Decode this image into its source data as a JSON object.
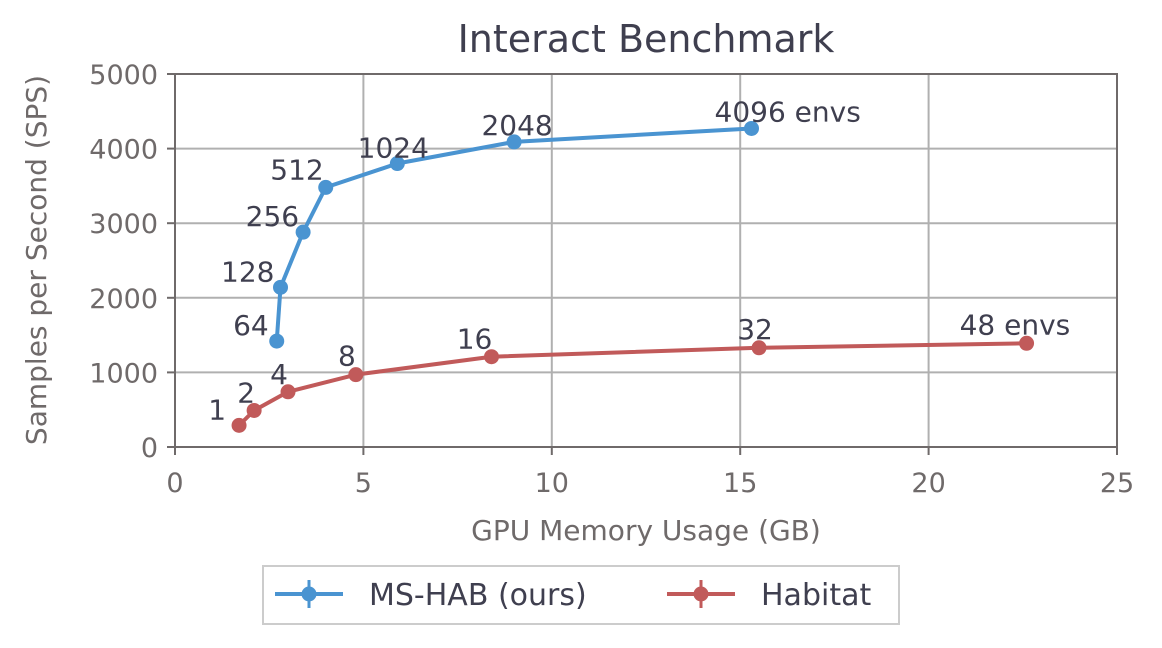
{
  "chart_data": {
    "type": "line",
    "title": "Interact Benchmark",
    "xlabel": "GPU Memory Usage (GB)",
    "ylabel": "Samples per Second (SPS)",
    "xlim": [
      0,
      25
    ],
    "ylim": [
      0,
      5000
    ],
    "xticks": [
      0,
      5,
      10,
      15,
      20,
      25
    ],
    "yticks": [
      0,
      1000,
      2000,
      3000,
      4000,
      5000
    ],
    "grid": true,
    "legend_position": "bottom-center",
    "series": [
      {
        "name": "MS-HAB (ours)",
        "color": "#4a94d1",
        "x": [
          2.7,
          2.8,
          3.4,
          4.0,
          5.9,
          9.0,
          15.3
        ],
        "y": [
          1420,
          2140,
          2880,
          3480,
          3800,
          4090,
          4270
        ],
        "labels": [
          "64",
          "128",
          "256",
          "512",
          "1024",
          "2048",
          "4096 envs"
        ]
      },
      {
        "name": "Habitat",
        "color": "#c15a5a",
        "x": [
          1.7,
          2.1,
          3.0,
          4.8,
          8.4,
          15.5,
          22.6
        ],
        "y": [
          290,
          490,
          740,
          970,
          1210,
          1330,
          1390
        ],
        "labels": [
          "1",
          "2",
          "4",
          "8",
          "16",
          "32",
          "48 envs"
        ]
      }
    ]
  }
}
